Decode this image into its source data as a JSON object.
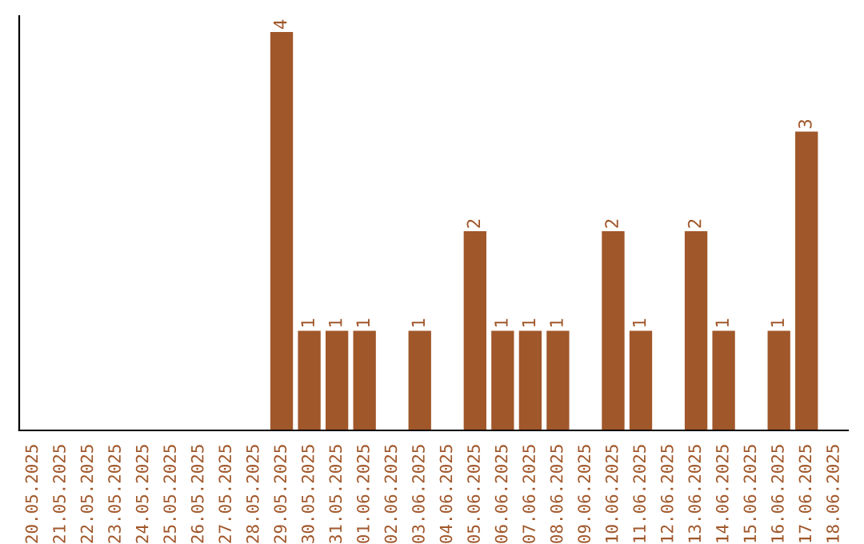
{
  "chart_data": {
    "type": "bar",
    "categories": [
      "20.05.2025",
      "21.05.2025",
      "22.05.2025",
      "23.05.2025",
      "24.05.2025",
      "25.05.2025",
      "26.05.2025",
      "27.05.2025",
      "28.05.2025",
      "29.05.2025",
      "30.05.2025",
      "31.05.2025",
      "01.06.2025",
      "02.06.2025",
      "03.06.2025",
      "04.06.2025",
      "05.06.2025",
      "06.06.2025",
      "07.06.2025",
      "08.06.2025",
      "09.06.2025",
      "10.06.2025",
      "11.06.2025",
      "12.06.2025",
      "13.06.2025",
      "14.06.2025",
      "15.06.2025",
      "16.06.2025",
      "17.06.2025",
      "18.06.2025"
    ],
    "values": [
      0,
      0,
      0,
      0,
      0,
      0,
      0,
      0,
      0,
      4,
      1,
      1,
      1,
      0,
      1,
      0,
      2,
      1,
      1,
      1,
      0,
      2,
      1,
      0,
      2,
      1,
      0,
      1,
      3,
      0
    ],
    "value_labels": [
      null,
      null,
      null,
      null,
      null,
      null,
      null,
      null,
      null,
      "4",
      "1",
      "1",
      "1",
      null,
      "1",
      null,
      "2",
      "1",
      "1",
      "1",
      null,
      "2",
      "1",
      null,
      "2",
      "1",
      null,
      "1",
      "3",
      null
    ],
    "color": "#a0572a",
    "tick_labels": "x",
    "grid": false,
    "legend": false
  }
}
